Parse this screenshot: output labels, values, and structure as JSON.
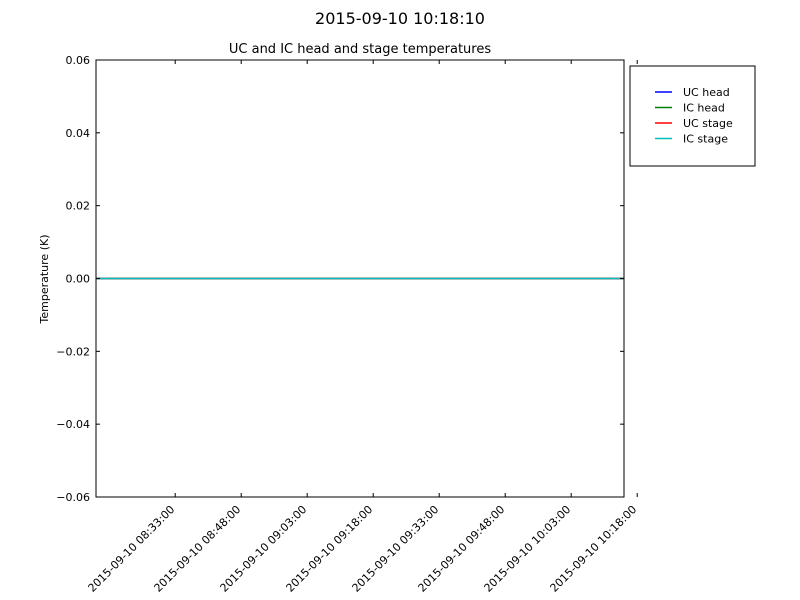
{
  "figure_title": "2015-09-10 10:18:10",
  "chart_data": {
    "type": "line",
    "title": "UC and IC head and stage temperatures",
    "xlabel": "",
    "ylabel": "Temperature (K)",
    "ylim": [
      -0.06,
      0.06
    ],
    "yticks": [
      -0.06,
      -0.04,
      -0.02,
      0.0,
      0.02,
      0.04,
      0.06
    ],
    "ytick_labels": [
      "−0.06",
      "−0.04",
      "−0.02",
      "0.00",
      "0.02",
      "0.04",
      "0.06"
    ],
    "xlim_minutes": [
      0,
      120
    ],
    "xticks_minutes": [
      18,
      33,
      48,
      63,
      78,
      93,
      108,
      123
    ],
    "xtick_labels": [
      "2015-09-10 08:33:00",
      "2015-09-10 08:48:00",
      "2015-09-10 09:03:00",
      "2015-09-10 09:18:00",
      "2015-09-10 09:33:00",
      "2015-09-10 09:48:00",
      "2015-09-10 10:03:00",
      "2015-09-10 10:18:00"
    ],
    "grid": false,
    "legend_position": "outside-top-right",
    "series": [
      {
        "name": "UC head",
        "color": "#0000ff",
        "x": [
          0,
          120
        ],
        "y": [
          0,
          0
        ]
      },
      {
        "name": "IC head",
        "color": "#008000",
        "x": [
          0,
          120
        ],
        "y": [
          0,
          0
        ]
      },
      {
        "name": "UC stage",
        "color": "#ff0000",
        "x": [
          0,
          120
        ],
        "y": [
          0,
          0
        ]
      },
      {
        "name": "IC stage",
        "color": "#00bfbf",
        "x": [
          0,
          120
        ],
        "y": [
          0,
          0
        ]
      }
    ]
  }
}
